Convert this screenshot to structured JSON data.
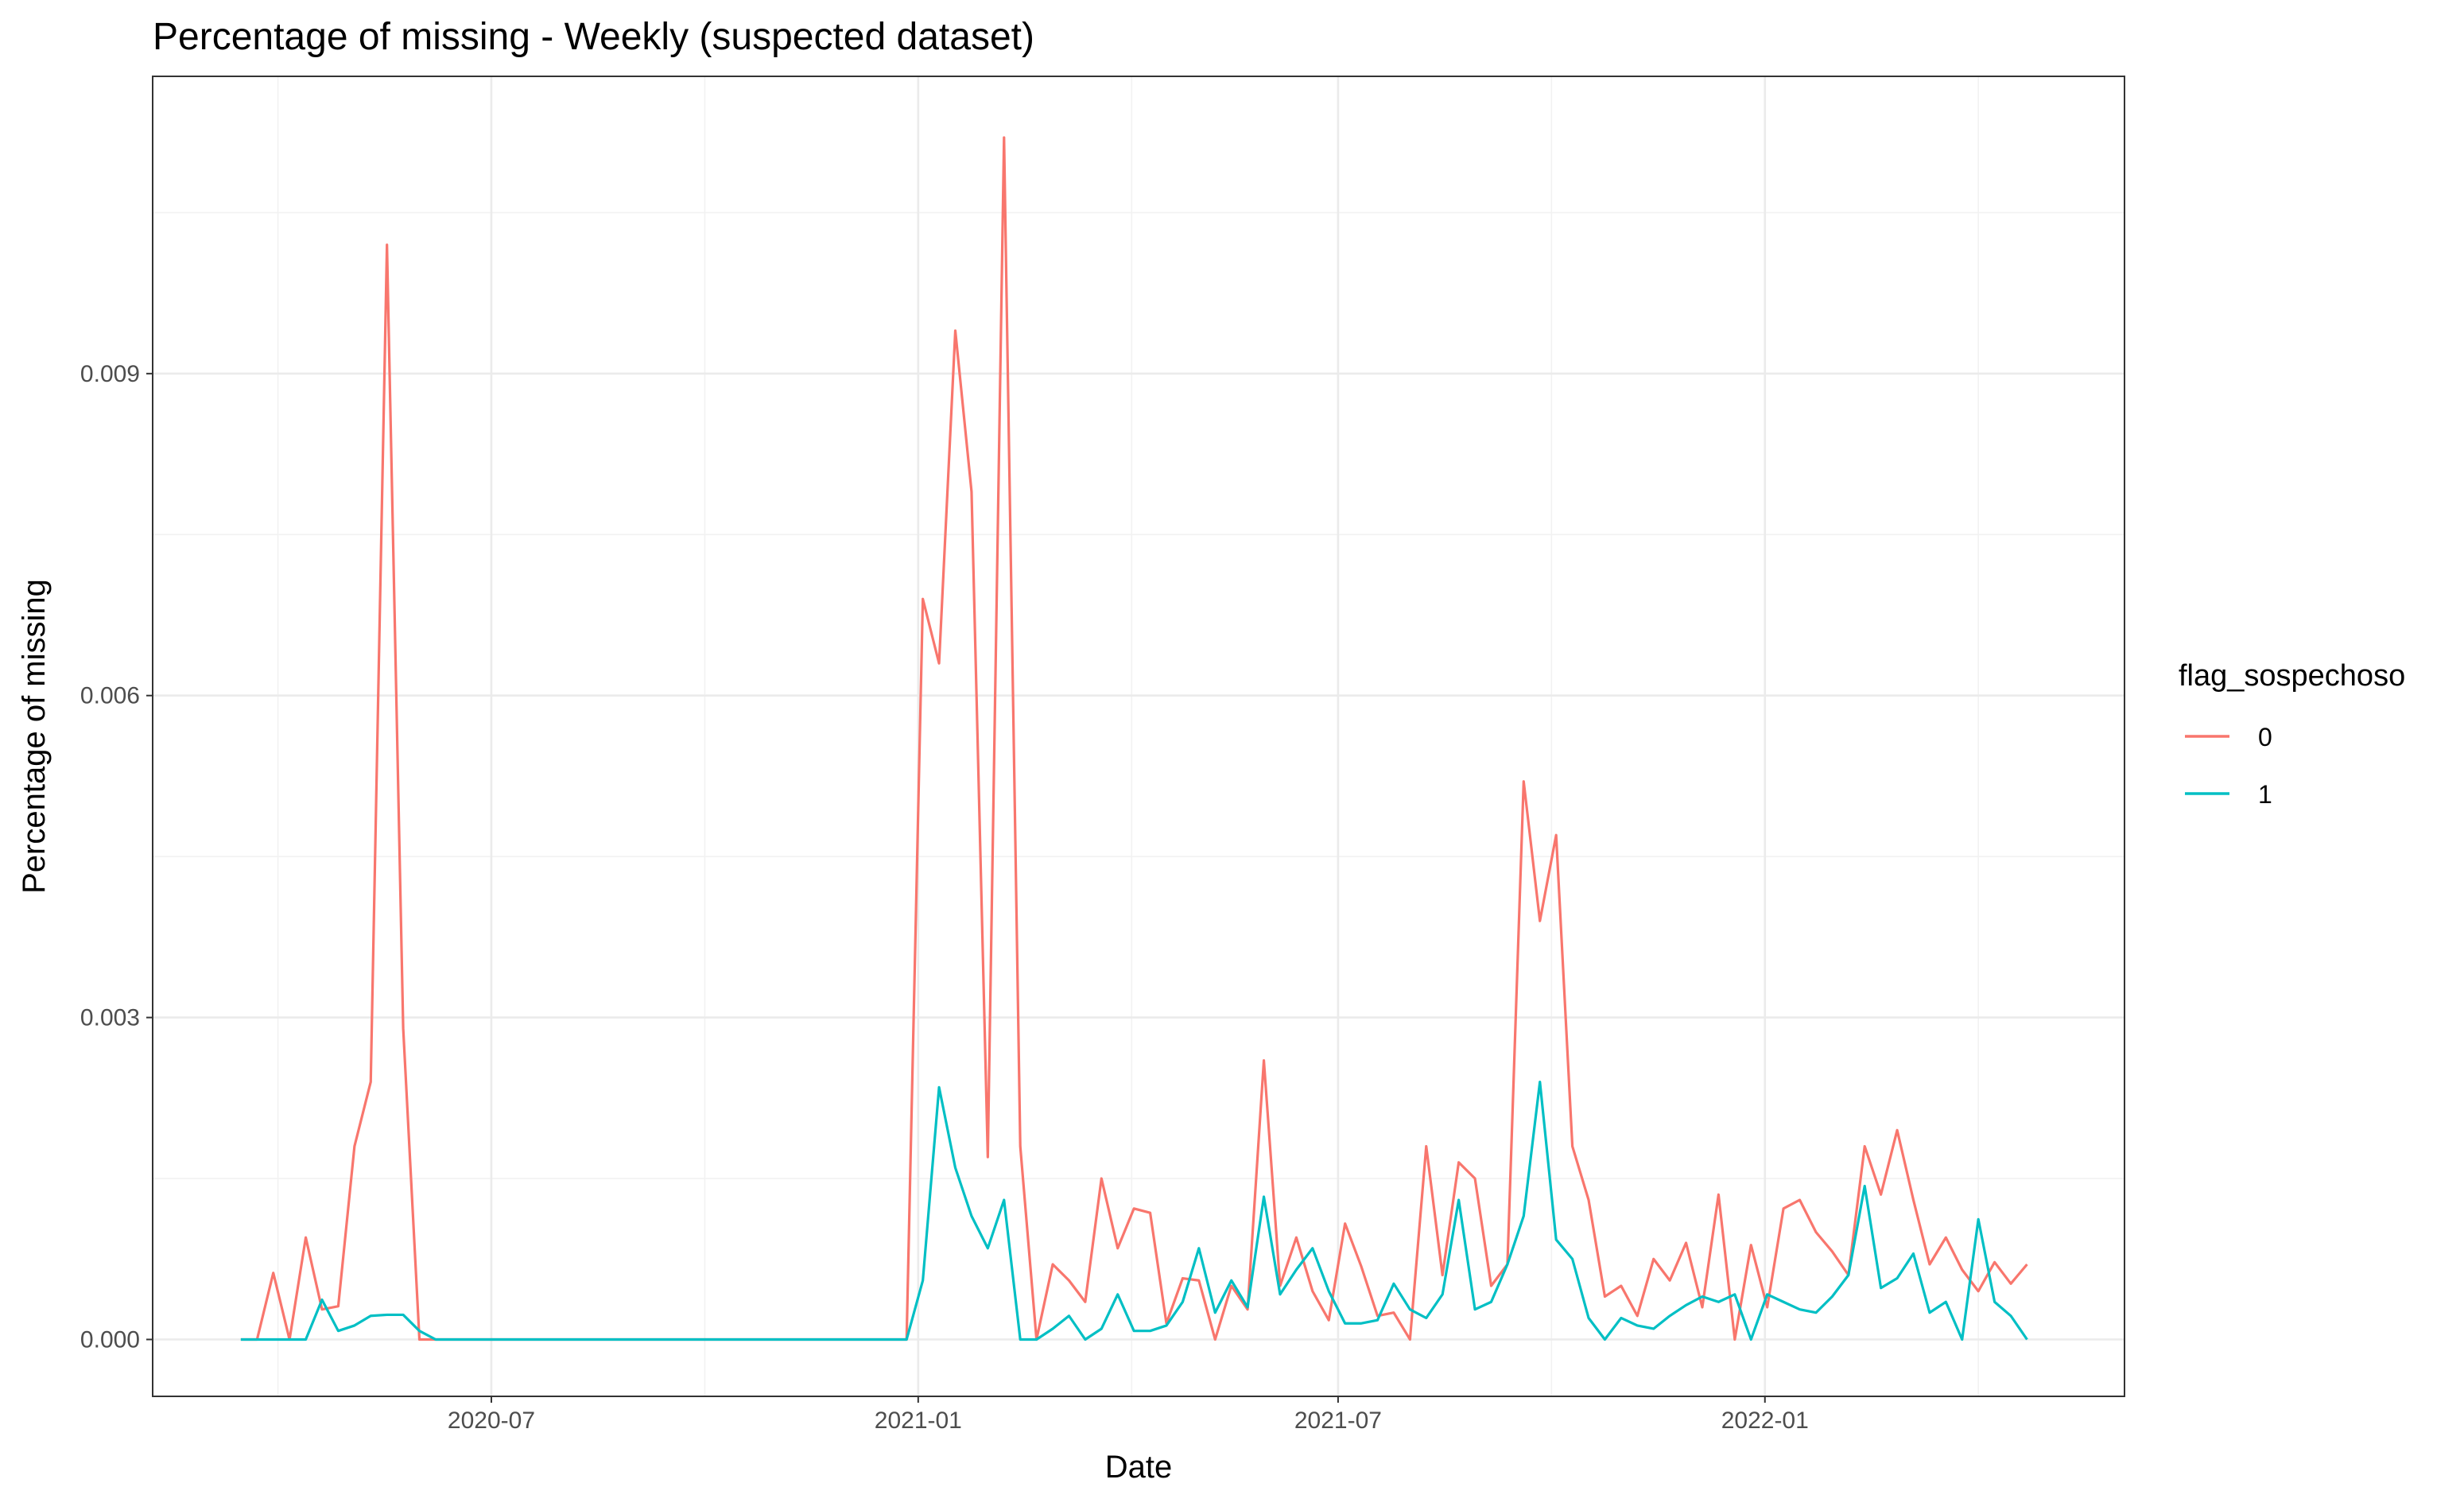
{
  "chart_data": {
    "type": "line",
    "title": "Percentage of missing - Weekly (suspected dataset)",
    "x_label": "Date",
    "y_label": "Percentage of missing",
    "legend_title": "flag_sospechoso",
    "legend_position": "right",
    "grid": true,
    "x": [
      "2020-03-15",
      "2020-03-22",
      "2020-03-29",
      "2020-04-05",
      "2020-04-12",
      "2020-04-19",
      "2020-04-26",
      "2020-05-03",
      "2020-05-10",
      "2020-05-17",
      "2020-05-24",
      "2020-05-31",
      "2020-06-07",
      "2020-06-14",
      "2020-06-21",
      "2020-06-28",
      "2020-07-05",
      "2020-07-12",
      "2020-07-19",
      "2020-07-26",
      "2020-08-02",
      "2020-08-09",
      "2020-08-16",
      "2020-08-23",
      "2020-08-30",
      "2020-09-06",
      "2020-09-13",
      "2020-09-20",
      "2020-09-27",
      "2020-10-04",
      "2020-10-11",
      "2020-10-18",
      "2020-10-25",
      "2020-11-01",
      "2020-11-08",
      "2020-11-15",
      "2020-11-22",
      "2020-11-29",
      "2020-12-06",
      "2020-12-13",
      "2020-12-20",
      "2020-12-27",
      "2021-01-03",
      "2021-01-10",
      "2021-01-17",
      "2021-01-24",
      "2021-01-31",
      "2021-02-07",
      "2021-02-14",
      "2021-02-21",
      "2021-02-28",
      "2021-03-07",
      "2021-03-14",
      "2021-03-21",
      "2021-03-28",
      "2021-04-04",
      "2021-04-11",
      "2021-04-18",
      "2021-04-25",
      "2021-05-02",
      "2021-05-09",
      "2021-05-16",
      "2021-05-23",
      "2021-05-30",
      "2021-06-06",
      "2021-06-13",
      "2021-06-20",
      "2021-06-27",
      "2021-07-04",
      "2021-07-11",
      "2021-07-18",
      "2021-07-25",
      "2021-08-01",
      "2021-08-08",
      "2021-08-15",
      "2021-08-22",
      "2021-08-29",
      "2021-09-05",
      "2021-09-12",
      "2021-09-19",
      "2021-09-26",
      "2021-10-03",
      "2021-10-10",
      "2021-10-17",
      "2021-10-24",
      "2021-10-31",
      "2021-11-07",
      "2021-11-14",
      "2021-11-21",
      "2021-11-28",
      "2021-12-05",
      "2021-12-12",
      "2021-12-19",
      "2021-12-26",
      "2022-01-02",
      "2022-01-09",
      "2022-01-16",
      "2022-01-23",
      "2022-01-30",
      "2022-02-06",
      "2022-02-13",
      "2022-02-20",
      "2022-02-27",
      "2022-03-06",
      "2022-03-13",
      "2022-03-20",
      "2022-03-27",
      "2022-04-03",
      "2022-04-10",
      "2022-04-17",
      "2022-04-24"
    ],
    "series": [
      {
        "name": "0",
        "color": "#F8766D",
        "values": [
          0,
          0,
          0.00062,
          0,
          0.00095,
          0.00028,
          0.00031,
          0.0018,
          0.0024,
          0.0102,
          0.0029,
          0,
          0,
          0,
          0,
          0,
          0,
          0,
          0,
          0,
          0,
          0,
          0,
          0,
          0,
          0,
          0,
          0,
          0,
          0,
          0,
          0,
          0,
          0,
          0,
          0,
          0,
          0,
          0,
          0,
          0,
          0,
          0.0069,
          0.0063,
          0.0094,
          0.0079,
          0.0017,
          0.0112,
          0.0018,
          0,
          0.0007,
          0.00055,
          0.00035,
          0.0015,
          0.00085,
          0.00122,
          0.00118,
          0.00015,
          0.00057,
          0.00055,
          0,
          0.0005,
          0.00028,
          0.0026,
          0.0005,
          0.00095,
          0.00045,
          0.00018,
          0.00108,
          0.00068,
          0.00022,
          0.00025,
          0,
          0.0018,
          0.0006,
          0.00165,
          0.0015,
          0.0005,
          0.0007,
          0.0052,
          0.0039,
          0.0047,
          0.0018,
          0.0013,
          0.0004,
          0.0005,
          0.00022,
          0.00075,
          0.00055,
          0.0009,
          0.0003,
          0.00135,
          0,
          0.00088,
          0.0003,
          0.00122,
          0.0013,
          0.001,
          0.00082,
          0.0006,
          0.0018,
          0.00135,
          0.00195,
          0.0013,
          0.0007,
          0.00095,
          0.00065,
          0.00045,
          0.00072,
          0.00052,
          0.0007
        ]
      },
      {
        "name": "1",
        "color": "#00BFC4",
        "values": [
          0,
          0,
          0,
          0,
          0,
          0.00037,
          8e-05,
          0.00013,
          0.00022,
          0.00023,
          0.00023,
          8e-05,
          0,
          0,
          0,
          0,
          0,
          0,
          0,
          0,
          0,
          0,
          0,
          0,
          0,
          0,
          0,
          0,
          0,
          0,
          0,
          0,
          0,
          0,
          0,
          0,
          0,
          0,
          0,
          0,
          0,
          0,
          0.00055,
          0.00235,
          0.0016,
          0.00115,
          0.00085,
          0.0013,
          0,
          0,
          0.0001,
          0.00022,
          0,
          0.0001,
          0.00042,
          8e-05,
          8e-05,
          0.00013,
          0.00035,
          0.00085,
          0.00025,
          0.00055,
          0.0003,
          0.00133,
          0.00042,
          0.00065,
          0.00085,
          0.00045,
          0.00015,
          0.00015,
          0.00018,
          0.00052,
          0.00028,
          0.0002,
          0.00042,
          0.0013,
          0.00028,
          0.00035,
          0.0007,
          0.00115,
          0.0024,
          0.00093,
          0.00075,
          0.0002,
          0,
          0.0002,
          0.00013,
          0.0001,
          0.00022,
          0.00032,
          0.0004,
          0.00035,
          0.00042,
          0,
          0.00042,
          0.00035,
          0.00028,
          0.00025,
          0.0004,
          0.0006,
          0.00143,
          0.00048,
          0.00057,
          0.0008,
          0.00025,
          0.00035,
          0,
          0.00112,
          0.00035,
          0.00022,
          0
        ]
      }
    ],
    "xlim": [
      "2020-02-06",
      "2022-06-05"
    ],
    "xticks": [
      "2020-07",
      "2021-01",
      "2021-07",
      "2022-01"
    ],
    "ylim": [
      -0.00053,
      0.01177
    ],
    "yticks": [
      {
        "value": 0,
        "label": "0.000"
      },
      0.003,
      0.006,
      0.009
    ]
  }
}
